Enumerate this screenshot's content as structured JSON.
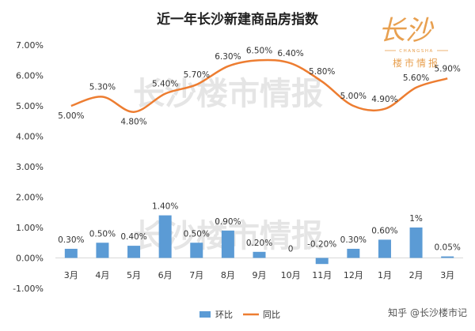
{
  "chart_data": {
    "type": "bar+line",
    "title": "近一年长沙新建商品房指数",
    "categories": [
      "3月",
      "4月",
      "5月",
      "6月",
      "7月",
      "8月",
      "9月",
      "10月",
      "11月",
      "12月",
      "1月",
      "2月",
      "3月"
    ],
    "series": [
      {
        "name": "环比",
        "type": "bar",
        "color": "#5b9bd5",
        "values": [
          0.3,
          0.5,
          0.4,
          1.4,
          0.5,
          0.9,
          0.2,
          0,
          -0.2,
          0.3,
          0.6,
          1.0,
          0.05
        ],
        "labels": [
          "0.30%",
          "0.50%",
          "0.40%",
          "1.40%",
          "0.50%",
          "0.90%",
          "0.20%",
          "0",
          "-0.20%",
          "0.30%",
          "0.60%",
          "1%",
          "0.05%"
        ]
      },
      {
        "name": "同比",
        "type": "line",
        "color": "#ed7d31",
        "values": [
          5.0,
          5.3,
          4.8,
          5.4,
          5.7,
          6.3,
          6.5,
          6.4,
          5.8,
          5.0,
          4.9,
          5.6,
          5.9
        ],
        "labels": [
          "5.00%",
          "5.30%",
          "4.80%",
          "5.40%",
          "5.70%",
          "6.30%",
          "6.50%",
          "6.40%",
          "5.80%",
          "5.00%",
          "4.90%",
          "5.60%",
          "5.90%"
        ]
      }
    ],
    "ylim": [
      -1,
      7
    ],
    "yticks": [
      "-1.00%",
      "0.00%",
      "1.00%",
      "2.00%",
      "3.00%",
      "4.00%",
      "5.00%",
      "6.00%",
      "7.00%"
    ],
    "grid": false,
    "legend": "bottom"
  },
  "watermark": {
    "text": "长沙楼市情报"
  },
  "logo": {
    "script": "长沙",
    "small": "CHANGSHA",
    "sub": "楼市情报"
  },
  "footer": {
    "credit": "知乎 @长沙楼市记"
  }
}
